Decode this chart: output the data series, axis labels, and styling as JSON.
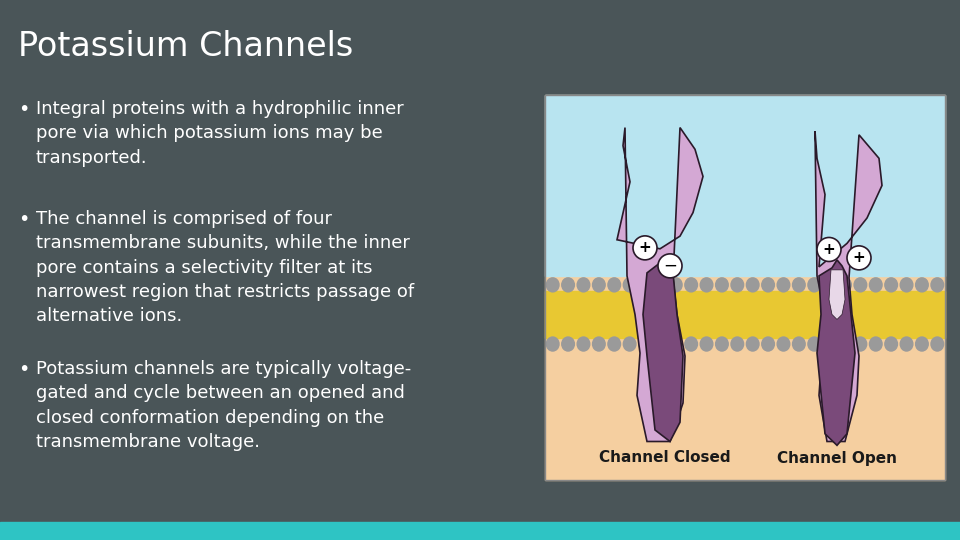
{
  "title": "Potassium Channels",
  "background_color": "#4a5558",
  "title_color": "#ffffff",
  "text_color": "#ffffff",
  "accent_color": "#2ec4c4",
  "bullet_points": [
    "Integral proteins with a hydrophilic inner\npore via which potassium ions may be\ntransported.",
    "The channel is comprised of four\ntransmembrane subunits, while the inner\npore contains a selectivity filter at its\nnarrowest region that restricts passage of\nalternative ions.",
    "Potassium channels are typically voltage-\ngated and cycle between an opened and\nclosed conformation depending on the\ntransmembrane voltage."
  ],
  "title_fontsize": 24,
  "body_fontsize": 13,
  "img_bg_color": "#f5cfa0",
  "img_sky_color": "#b8e4f0",
  "membrane_yellow": "#e8c832",
  "membrane_gray": "#9a9a9a",
  "protein_light": "#d4a8d4",
  "protein_dark": "#7a4a7a",
  "protein_outline": "#2a1a2a",
  "channel_closed_label": "Channel Closed",
  "channel_open_label": "Channel Open",
  "bottom_bar_color": "#2ec4c4",
  "label_color": "#1a1a1a"
}
